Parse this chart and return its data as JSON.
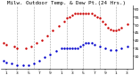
{
  "title": "Milw. Outdoor Temp. & Dew Pt.(24 Hrs.)",
  "temp_color": "#cc0000",
  "dew_color": "#0000cc",
  "background_color": "#ffffff",
  "ylim": [
    22,
    62
  ],
  "xlim": [
    0,
    24
  ],
  "ytick_vals": [
    30,
    35,
    40,
    45,
    50,
    55,
    60
  ],
  "ytick_labels": [
    "30",
    "35",
    "40",
    "45",
    "50",
    "55",
    "60"
  ],
  "xtick_positions": [
    1,
    3,
    5,
    7,
    9,
    11,
    13,
    15,
    17,
    19,
    21,
    23
  ],
  "xtick_labels": [
    "1",
    "3",
    "5",
    "7",
    "9",
    "1",
    "3",
    "5",
    "7",
    "9",
    "1",
    "3"
  ],
  "temp_x": [
    0.5,
    1.0,
    2.5,
    3.0,
    4.5,
    5.5,
    6.5,
    7.5,
    8.5,
    9.5,
    10.5,
    11.5,
    12.0,
    12.5,
    13.0,
    13.5,
    14.0,
    14.5,
    15.0,
    15.5,
    16.0,
    16.5,
    17.0,
    17.5,
    18.0,
    18.5,
    19.0,
    19.5,
    20.0,
    20.5,
    21.0,
    21.5,
    22.0,
    23.0
  ],
  "temp_y": [
    38,
    37,
    36,
    35,
    35,
    36,
    38,
    40,
    43,
    46,
    49,
    52,
    54,
    55,
    56,
    57,
    57,
    57,
    57,
    57,
    57,
    57,
    56,
    55,
    54,
    52,
    50,
    48,
    47,
    46,
    46,
    47,
    48,
    50
  ],
  "dew_x": [
    0.5,
    1.0,
    2.0,
    3.0,
    4.0,
    5.0,
    6.0,
    7.0,
    8.0,
    9.0,
    10.0,
    11.0,
    11.5,
    12.0,
    12.5,
    13.0,
    13.5,
    14.0,
    14.5,
    15.0,
    15.5,
    16.0,
    16.5,
    17.0,
    18.0,
    19.0,
    20.0,
    21.0,
    22.0,
    23.0
  ],
  "dew_y": [
    27,
    26,
    25,
    24,
    24,
    24,
    25,
    27,
    29,
    31,
    33,
    35,
    35,
    35,
    35,
    35,
    35,
    35,
    36,
    37,
    38,
    38,
    38,
    37,
    36,
    35,
    34,
    34,
    35,
    36
  ],
  "title_fontsize": 4.2,
  "tick_fontsize": 3.2,
  "markersize": 1.5,
  "grid_color": "#999999",
  "grid_positions": [
    3,
    6,
    9,
    12,
    15,
    18,
    21
  ]
}
